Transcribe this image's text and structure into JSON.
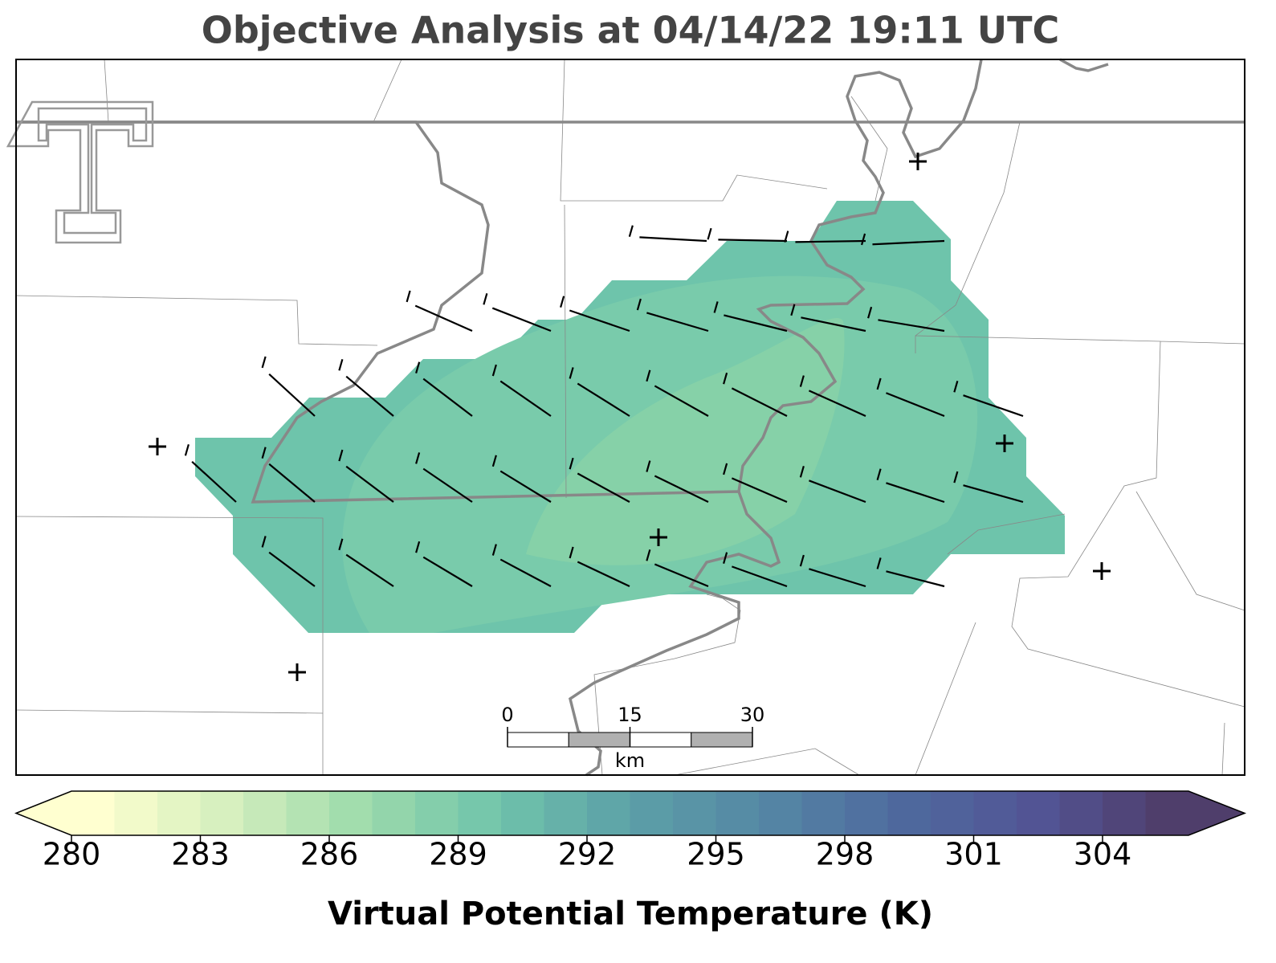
{
  "chart_data": {
    "type": "colormap-map",
    "title": "Objective Analysis at 04/14/22 19:11 UTC",
    "colorbar_label": "Virtual Potential Temperature (K)",
    "clim": [
      280,
      306
    ],
    "cticks": [
      280,
      283,
      286,
      289,
      292,
      295,
      298,
      301,
      304
    ],
    "colormap": [
      "#ffffd0",
      "#d5efbe",
      "#9edbab",
      "#70c4ab",
      "#5ca0a7",
      "#5587a5",
      "#4e6a9e",
      "#525596",
      "#4f3e6b"
    ],
    "scalebar": {
      "ticks": [
        0,
        15,
        30
      ],
      "unit": "km"
    }
  }
}
